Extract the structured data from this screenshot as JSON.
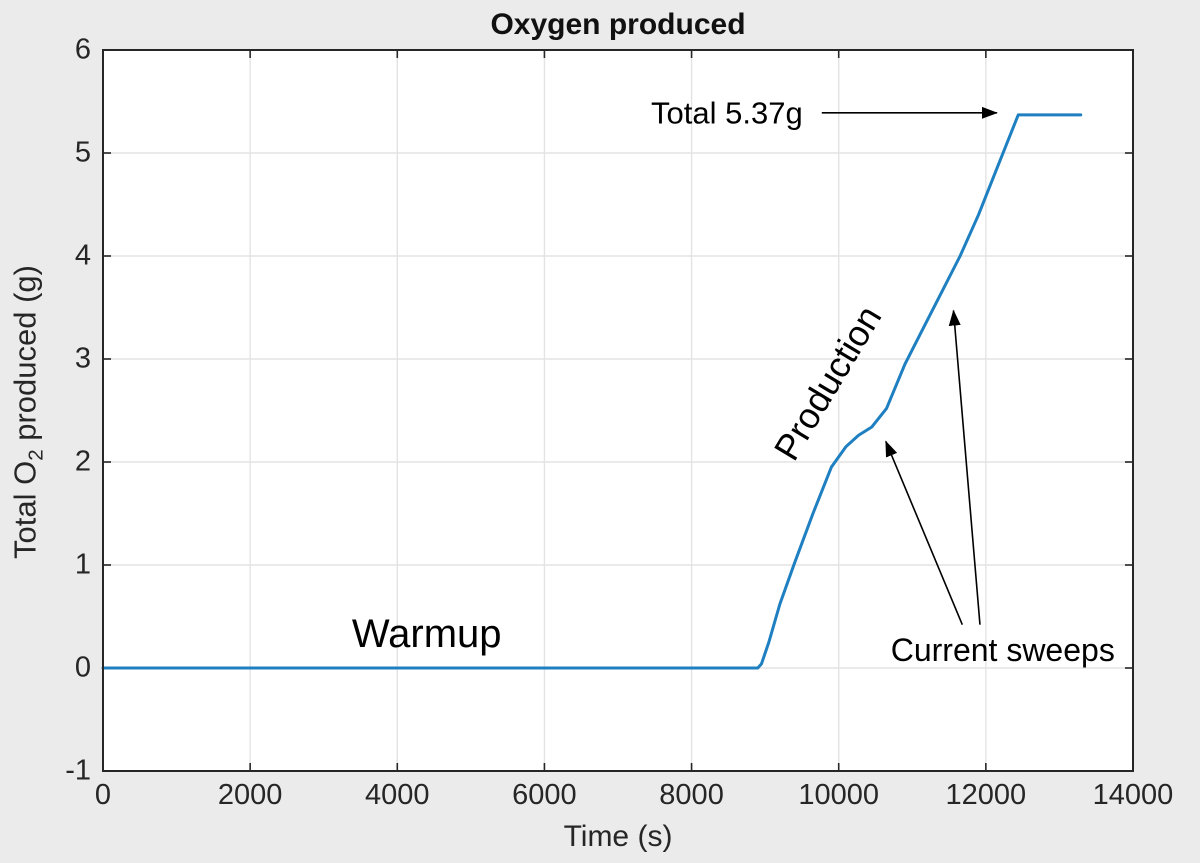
{
  "chart_data": {
    "type": "line",
    "title": "Oxygen produced",
    "xlabel": "Time (s)",
    "ylabel_parts": [
      "Total O",
      "2",
      " produced (g)"
    ],
    "xlim": [
      0,
      14000
    ],
    "ylim": [
      -1,
      6
    ],
    "xticks": [
      0,
      2000,
      4000,
      6000,
      8000,
      10000,
      12000,
      14000
    ],
    "yticks": [
      -1,
      0,
      1,
      2,
      3,
      4,
      5,
      6
    ],
    "grid": true,
    "legend": "none",
    "colors": {
      "line": "#1e7fc1",
      "axis": "#262626",
      "grid": "#e3e3e3",
      "background": "#ebebeb",
      "plot_background": "#ffffff",
      "annotation": "#000000"
    },
    "series": [
      {
        "name": "Total O2 produced",
        "points": [
          [
            0,
            0
          ],
          [
            8900,
            0
          ],
          [
            8950,
            0.04
          ],
          [
            9050,
            0.25
          ],
          [
            9200,
            0.62
          ],
          [
            9400,
            1.02
          ],
          [
            9650,
            1.5
          ],
          [
            9900,
            1.95
          ],
          [
            10100,
            2.15
          ],
          [
            10270,
            2.26
          ],
          [
            10450,
            2.34
          ],
          [
            10650,
            2.52
          ],
          [
            10900,
            2.95
          ],
          [
            11150,
            3.3
          ],
          [
            11400,
            3.65
          ],
          [
            11650,
            4.0
          ],
          [
            11900,
            4.4
          ],
          [
            12150,
            4.85
          ],
          [
            12440,
            5.37
          ],
          [
            13290,
            5.37
          ]
        ]
      }
    ],
    "annotations": [
      {
        "id": "warmup",
        "text": "Warmup",
        "x": 4400,
        "y": 0.33,
        "rotation": 0,
        "font_px": 40
      },
      {
        "id": "production",
        "text": "Production",
        "x": 9850,
        "y": 2.77,
        "rotation": -59,
        "font_px": 36
      },
      {
        "id": "total",
        "text": "Total 5.37g",
        "x": 8480,
        "y": 5.39,
        "rotation": 0,
        "font_px": 31,
        "arrows": [
          {
            "from": [
              9770,
              5.39
            ],
            "to": [
              12150,
              5.39
            ]
          }
        ]
      },
      {
        "id": "current-sweeps",
        "text": "Current sweeps",
        "x": 12230,
        "y": 0.17,
        "rotation": 0,
        "font_px": 32,
        "arrows": [
          {
            "from": [
              11920,
              0.42
            ],
            "to": [
              11560,
              3.47
            ]
          },
          {
            "from": [
              11680,
              0.42
            ],
            "to": [
              10640,
              2.2
            ]
          }
        ]
      }
    ]
  }
}
